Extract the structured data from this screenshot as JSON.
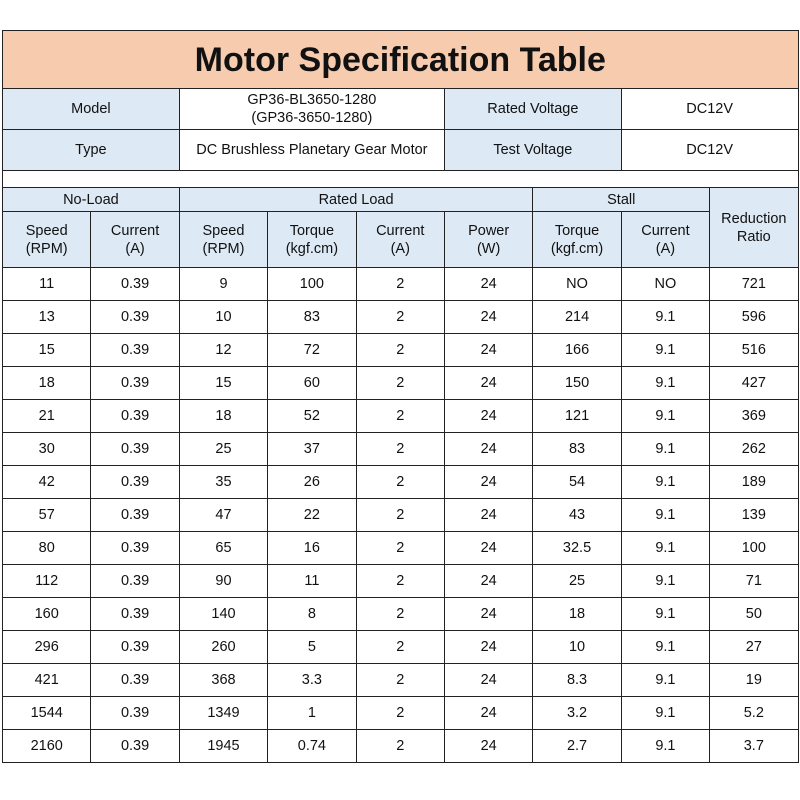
{
  "title": "Motor Specification Table",
  "colors": {
    "title_bg": "#f7cbae",
    "header_bg": "#dde9f5"
  },
  "info": {
    "model_label": "Model",
    "model_value_line1": "GP36-BL3650-1280",
    "model_value_line2": "(GP36-3650-1280)",
    "rated_voltage_label": "Rated Voltage",
    "rated_voltage_value": "DC12V",
    "type_label": "Type",
    "type_value": "DC Brushless Planetary Gear Motor",
    "test_voltage_label": "Test Voltage",
    "test_voltage_value": "DC12V"
  },
  "groups": {
    "no_load": "No-Load",
    "rated_load": "Rated Load",
    "stall": "Stall",
    "reduction_ratio": "Reduction Ratio"
  },
  "columns": [
    {
      "line1": "Speed",
      "line2": "(RPM)"
    },
    {
      "line1": "Current",
      "line2": "(A)"
    },
    {
      "line1": "Speed",
      "line2": "(RPM)"
    },
    {
      "line1": "Torque",
      "line2": "(kgf.cm)"
    },
    {
      "line1": "Current",
      "line2": "(A)"
    },
    {
      "line1": "Power",
      "line2": "(W)"
    },
    {
      "line1": "Torque",
      "line2": "(kgf.cm)"
    },
    {
      "line1": "Current",
      "line2": "(A)"
    }
  ],
  "rows": [
    [
      "11",
      "0.39",
      "9",
      "100",
      "2",
      "24",
      "NO",
      "NO",
      "721"
    ],
    [
      "13",
      "0.39",
      "10",
      "83",
      "2",
      "24",
      "214",
      "9.1",
      "596"
    ],
    [
      "15",
      "0.39",
      "12",
      "72",
      "2",
      "24",
      "166",
      "9.1",
      "516"
    ],
    [
      "18",
      "0.39",
      "15",
      "60",
      "2",
      "24",
      "150",
      "9.1",
      "427"
    ],
    [
      "21",
      "0.39",
      "18",
      "52",
      "2",
      "24",
      "121",
      "9.1",
      "369"
    ],
    [
      "30",
      "0.39",
      "25",
      "37",
      "2",
      "24",
      "83",
      "9.1",
      "262"
    ],
    [
      "42",
      "0.39",
      "35",
      "26",
      "2",
      "24",
      "54",
      "9.1",
      "189"
    ],
    [
      "57",
      "0.39",
      "47",
      "22",
      "2",
      "24",
      "43",
      "9.1",
      "139"
    ],
    [
      "80",
      "0.39",
      "65",
      "16",
      "2",
      "24",
      "32.5",
      "9.1",
      "100"
    ],
    [
      "112",
      "0.39",
      "90",
      "11",
      "2",
      "24",
      "25",
      "9.1",
      "71"
    ],
    [
      "160",
      "0.39",
      "140",
      "8",
      "2",
      "24",
      "18",
      "9.1",
      "50"
    ],
    [
      "296",
      "0.39",
      "260",
      "5",
      "2",
      "24",
      "10",
      "9.1",
      "27"
    ],
    [
      "421",
      "0.39",
      "368",
      "3.3",
      "2",
      "24",
      "8.3",
      "9.1",
      "19"
    ],
    [
      "1544",
      "0.39",
      "1349",
      "1",
      "2",
      "24",
      "3.2",
      "9.1",
      "5.2"
    ],
    [
      "2160",
      "0.39",
      "1945",
      "0.74",
      "2",
      "24",
      "2.7",
      "9.1",
      "3.7"
    ]
  ]
}
